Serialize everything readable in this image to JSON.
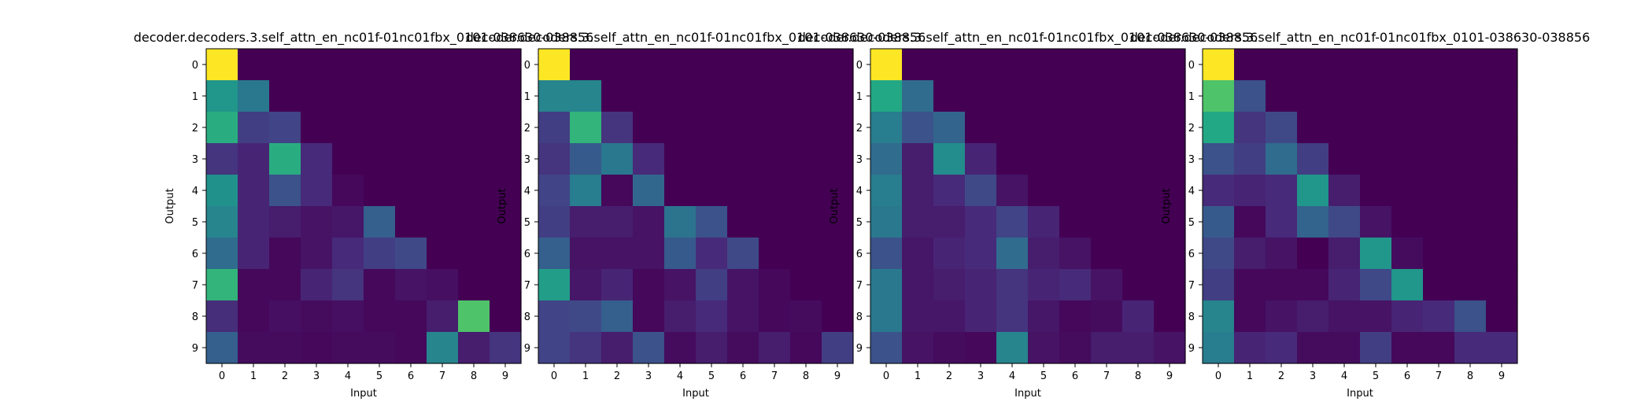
{
  "figure": {
    "background": "#ffffff"
  },
  "colormap": "viridis",
  "chart_data": [
    {
      "type": "heatmap",
      "title": "decoder.decoders.3.self_attn_en_nc01f-01nc01fbx_0101-038630-038856",
      "xlabel": "Input",
      "ylabel": "Output",
      "x_ticks": [
        "0",
        "1",
        "2",
        "3",
        "4",
        "5",
        "6",
        "7",
        "8",
        "9"
      ],
      "y_ticks": [
        "0",
        "1",
        "2",
        "3",
        "4",
        "5",
        "6",
        "7",
        "8",
        "9"
      ],
      "vmin": 0,
      "vmax": 1,
      "values": [
        [
          1.0,
          0.0,
          0.0,
          0.0,
          0.0,
          0.0,
          0.0,
          0.0,
          0.0,
          0.0
        ],
        [
          0.52,
          0.4,
          0.0,
          0.0,
          0.0,
          0.0,
          0.0,
          0.0,
          0.0,
          0.0
        ],
        [
          0.62,
          0.18,
          0.2,
          0.0,
          0.0,
          0.0,
          0.0,
          0.0,
          0.0,
          0.0
        ],
        [
          0.15,
          0.1,
          0.62,
          0.12,
          0.0,
          0.0,
          0.0,
          0.0,
          0.0,
          0.0
        ],
        [
          0.5,
          0.1,
          0.25,
          0.12,
          0.02,
          0.0,
          0.0,
          0.0,
          0.0,
          0.0
        ],
        [
          0.45,
          0.1,
          0.08,
          0.05,
          0.06,
          0.3,
          0.0,
          0.0,
          0.0,
          0.0
        ],
        [
          0.35,
          0.1,
          0.02,
          0.05,
          0.12,
          0.18,
          0.22,
          0.0,
          0.0,
          0.0
        ],
        [
          0.65,
          0.02,
          0.02,
          0.1,
          0.15,
          0.02,
          0.05,
          0.04,
          0.0,
          0.0
        ],
        [
          0.13,
          0.02,
          0.04,
          0.03,
          0.04,
          0.02,
          0.02,
          0.08,
          0.72,
          0.0
        ],
        [
          0.3,
          0.03,
          0.03,
          0.02,
          0.03,
          0.03,
          0.02,
          0.45,
          0.08,
          0.15
        ]
      ]
    },
    {
      "type": "heatmap",
      "title": "decoder.decoders.3.self_attn_en_nc01f-01nc01fbx_0101-038630-038856",
      "xlabel": "Input",
      "ylabel": "Output",
      "x_ticks": [
        "0",
        "1",
        "2",
        "3",
        "4",
        "5",
        "6",
        "7",
        "8",
        "9"
      ],
      "y_ticks": [
        "0",
        "1",
        "2",
        "3",
        "4",
        "5",
        "6",
        "7",
        "8",
        "9"
      ],
      "vmin": 0,
      "vmax": 1,
      "values": [
        [
          1.0,
          0.0,
          0.0,
          0.0,
          0.0,
          0.0,
          0.0,
          0.0,
          0.0,
          0.0
        ],
        [
          0.45,
          0.45,
          0.0,
          0.0,
          0.0,
          0.0,
          0.0,
          0.0,
          0.0,
          0.0
        ],
        [
          0.18,
          0.65,
          0.15,
          0.0,
          0.0,
          0.0,
          0.0,
          0.0,
          0.0,
          0.0
        ],
        [
          0.15,
          0.28,
          0.4,
          0.12,
          0.0,
          0.0,
          0.0,
          0.0,
          0.0,
          0.0
        ],
        [
          0.2,
          0.42,
          0.02,
          0.33,
          0.0,
          0.0,
          0.0,
          0.0,
          0.0,
          0.0
        ],
        [
          0.18,
          0.08,
          0.08,
          0.05,
          0.38,
          0.25,
          0.0,
          0.0,
          0.0,
          0.0
        ],
        [
          0.3,
          0.05,
          0.05,
          0.05,
          0.28,
          0.12,
          0.22,
          0.0,
          0.0,
          0.0
        ],
        [
          0.55,
          0.06,
          0.1,
          0.02,
          0.05,
          0.18,
          0.05,
          0.02,
          0.0,
          0.0
        ],
        [
          0.2,
          0.22,
          0.3,
          0.02,
          0.08,
          0.12,
          0.05,
          0.02,
          0.03,
          0.0
        ],
        [
          0.2,
          0.15,
          0.08,
          0.25,
          0.03,
          0.08,
          0.03,
          0.08,
          0.02,
          0.18
        ]
      ]
    },
    {
      "type": "heatmap",
      "title": "decoder.decoders.3.self_attn_en_nc01f-01nc01fbx_0101-038630-038856",
      "xlabel": "Input",
      "ylabel": "Output",
      "x_ticks": [
        "0",
        "1",
        "2",
        "3",
        "4",
        "5",
        "6",
        "7",
        "8",
        "9"
      ],
      "y_ticks": [
        "0",
        "1",
        "2",
        "3",
        "4",
        "5",
        "6",
        "7",
        "8",
        "9"
      ],
      "vmin": 0,
      "vmax": 1,
      "values": [
        [
          1.0,
          0.0,
          0.0,
          0.0,
          0.0,
          0.0,
          0.0,
          0.0,
          0.0,
          0.0
        ],
        [
          0.6,
          0.35,
          0.0,
          0.0,
          0.0,
          0.0,
          0.0,
          0.0,
          0.0,
          0.0
        ],
        [
          0.42,
          0.25,
          0.32,
          0.0,
          0.0,
          0.0,
          0.0,
          0.0,
          0.0,
          0.0
        ],
        [
          0.35,
          0.08,
          0.48,
          0.1,
          0.0,
          0.0,
          0.0,
          0.0,
          0.0,
          0.0
        ],
        [
          0.42,
          0.08,
          0.12,
          0.22,
          0.05,
          0.0,
          0.0,
          0.0,
          0.0,
          0.0
        ],
        [
          0.4,
          0.08,
          0.08,
          0.12,
          0.2,
          0.1,
          0.0,
          0.0,
          0.0,
          0.0
        ],
        [
          0.25,
          0.06,
          0.1,
          0.12,
          0.35,
          0.08,
          0.05,
          0.0,
          0.0,
          0.0
        ],
        [
          0.4,
          0.06,
          0.08,
          0.1,
          0.15,
          0.1,
          0.12,
          0.05,
          0.0,
          0.0
        ],
        [
          0.4,
          0.06,
          0.06,
          0.1,
          0.15,
          0.06,
          0.02,
          0.03,
          0.1,
          0.0
        ],
        [
          0.25,
          0.05,
          0.03,
          0.02,
          0.45,
          0.05,
          0.03,
          0.08,
          0.08,
          0.05
        ]
      ]
    },
    {
      "type": "heatmap",
      "title": "decoder.decoders.3.self_attn_en_nc01f-01nc01fbx_0101-038630-038856",
      "xlabel": "Input",
      "ylabel": "Output",
      "x_ticks": [
        "0",
        "1",
        "2",
        "3",
        "4",
        "5",
        "6",
        "7",
        "8",
        "9"
      ],
      "y_ticks": [
        "0",
        "1",
        "2",
        "3",
        "4",
        "5",
        "6",
        "7",
        "8",
        "9"
      ],
      "vmin": 0,
      "vmax": 1,
      "values": [
        [
          1.0,
          0.0,
          0.0,
          0.0,
          0.0,
          0.0,
          0.0,
          0.0,
          0.0,
          0.0
        ],
        [
          0.72,
          0.25,
          0.0,
          0.0,
          0.0,
          0.0,
          0.0,
          0.0,
          0.0,
          0.0
        ],
        [
          0.6,
          0.15,
          0.22,
          0.0,
          0.0,
          0.0,
          0.0,
          0.0,
          0.0,
          0.0
        ],
        [
          0.25,
          0.18,
          0.35,
          0.18,
          0.0,
          0.0,
          0.0,
          0.0,
          0.0,
          0.0
        ],
        [
          0.12,
          0.1,
          0.12,
          0.52,
          0.08,
          0.0,
          0.0,
          0.0,
          0.0,
          0.0
        ],
        [
          0.28,
          0.02,
          0.12,
          0.32,
          0.22,
          0.05,
          0.0,
          0.0,
          0.0,
          0.0
        ],
        [
          0.22,
          0.08,
          0.05,
          0.0,
          0.08,
          0.52,
          0.03,
          0.0,
          0.0,
          0.0
        ],
        [
          0.18,
          0.02,
          0.02,
          0.02,
          0.1,
          0.22,
          0.52,
          0.0,
          0.0,
          0.0
        ],
        [
          0.45,
          0.02,
          0.05,
          0.08,
          0.05,
          0.05,
          0.1,
          0.12,
          0.25,
          0.0
        ],
        [
          0.42,
          0.1,
          0.12,
          0.03,
          0.03,
          0.18,
          0.02,
          0.02,
          0.12,
          0.12
        ]
      ]
    }
  ]
}
